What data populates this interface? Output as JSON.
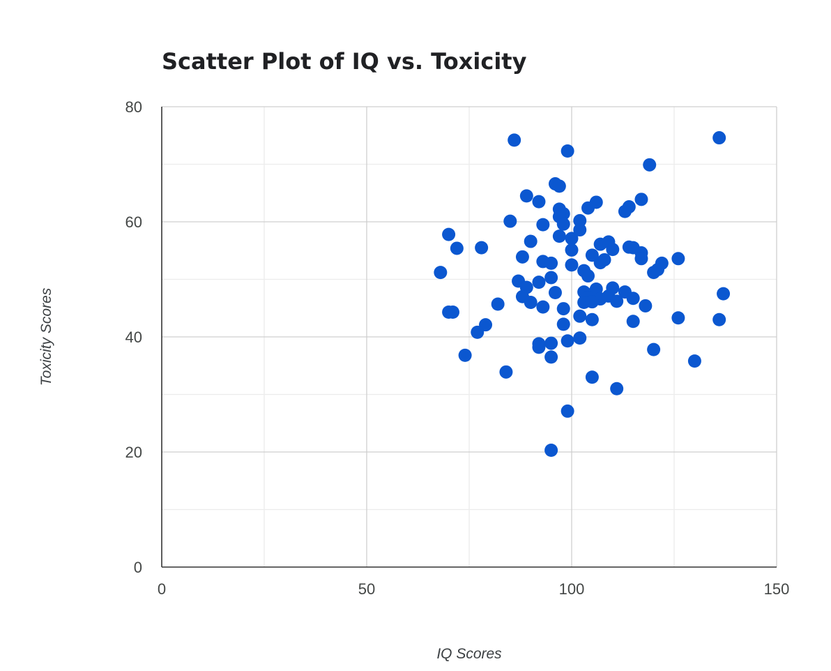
{
  "chart_data": {
    "type": "scatter",
    "title": "Scatter Plot of IQ vs. Toxicity",
    "xlabel": "IQ Scores",
    "ylabel": "Toxicity Scores",
    "xlim": [
      0,
      150
    ],
    "ylim": [
      0,
      80
    ],
    "x_ticks": [
      0,
      50,
      100,
      150
    ],
    "y_ticks": [
      0,
      20,
      40,
      60,
      80
    ],
    "x_minor_ticks": [
      25,
      75,
      125
    ],
    "y_minor_ticks": [
      10,
      30,
      50,
      70
    ],
    "grid": true,
    "legend": "none",
    "color": "#0b57d0",
    "points": [
      [
        86,
        74.2
      ],
      [
        136,
        74.6
      ],
      [
        99,
        72.3
      ],
      [
        119,
        69.9
      ],
      [
        96,
        66.6
      ],
      [
        97,
        66.2
      ],
      [
        89,
        64.5
      ],
      [
        92,
        63.5
      ],
      [
        106,
        63.4
      ],
      [
        117,
        63.9
      ],
      [
        114,
        62.6
      ],
      [
        113,
        61.8
      ],
      [
        104,
        62.4
      ],
      [
        97,
        62.2
      ],
      [
        98,
        61.4
      ],
      [
        97,
        60.9
      ],
      [
        85,
        60.1
      ],
      [
        102,
        60.2
      ],
      [
        93,
        59.5
      ],
      [
        98,
        59.6
      ],
      [
        102,
        58.6
      ],
      [
        70,
        57.8
      ],
      [
        97,
        57.5
      ],
      [
        90,
        56.6
      ],
      [
        100,
        57.1
      ],
      [
        107,
        56.1
      ],
      [
        109,
        56.5
      ],
      [
        72,
        55.4
      ],
      [
        78,
        55.5
      ],
      [
        100,
        55.1
      ],
      [
        110,
        55.2
      ],
      [
        114,
        55.6
      ],
      [
        115,
        55.5
      ],
      [
        117,
        54.6
      ],
      [
        105,
        54.2
      ],
      [
        108,
        53.4
      ],
      [
        117,
        53.6
      ],
      [
        88,
        53.9
      ],
      [
        93,
        53.1
      ],
      [
        95,
        52.8
      ],
      [
        100,
        52.5
      ],
      [
        107,
        52.9
      ],
      [
        126,
        53.6
      ],
      [
        122,
        52.8
      ],
      [
        103,
        51.5
      ],
      [
        104,
        50.6
      ],
      [
        120,
        51.2
      ],
      [
        121,
        51.7
      ],
      [
        68,
        51.2
      ],
      [
        87,
        49.7
      ],
      [
        92,
        49.5
      ],
      [
        95,
        50.3
      ],
      [
        89,
        48.6
      ],
      [
        96,
        47.7
      ],
      [
        103,
        47.8
      ],
      [
        105,
        47.4
      ],
      [
        106,
        48.3
      ],
      [
        110,
        48.5
      ],
      [
        113,
        47.8
      ],
      [
        137,
        47.5
      ],
      [
        88,
        47.0
      ],
      [
        104,
        46.8
      ],
      [
        107,
        46.6
      ],
      [
        109,
        47.1
      ],
      [
        115,
        46.7
      ],
      [
        90,
        46.0
      ],
      [
        103,
        46.0
      ],
      [
        105,
        46.1
      ],
      [
        111,
        46.2
      ],
      [
        82,
        45.7
      ],
      [
        93,
        45.2
      ],
      [
        98,
        44.9
      ],
      [
        118,
        45.4
      ],
      [
        70,
        44.3
      ],
      [
        71,
        44.3
      ],
      [
        102,
        43.6
      ],
      [
        105,
        43.0
      ],
      [
        115,
        42.7
      ],
      [
        126,
        43.3
      ],
      [
        136,
        43.0
      ],
      [
        79,
        42.1
      ],
      [
        98,
        42.2
      ],
      [
        77,
        40.8
      ],
      [
        99,
        39.3
      ],
      [
        102,
        39.8
      ],
      [
        92,
        38.8
      ],
      [
        92,
        38.2
      ],
      [
        95,
        38.9
      ],
      [
        120,
        37.8
      ],
      [
        74,
        36.8
      ],
      [
        95,
        36.5
      ],
      [
        130,
        35.8
      ],
      [
        84,
        33.9
      ],
      [
        105,
        33.0
      ],
      [
        111,
        31.0
      ],
      [
        99,
        27.1
      ],
      [
        95,
        20.3
      ]
    ]
  }
}
